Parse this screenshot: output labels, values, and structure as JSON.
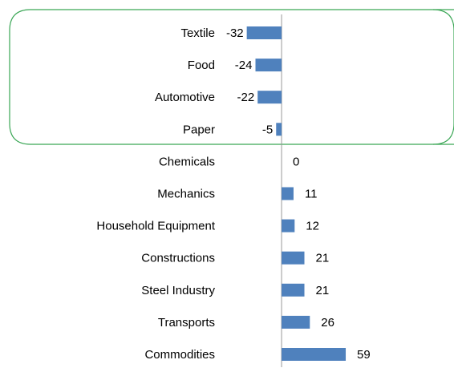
{
  "chart_data": {
    "type": "hbar",
    "categories": [
      "Textile",
      "Food",
      "Automotive",
      "Paper",
      "Chemicals",
      "Mechanics",
      "Household Equipment",
      "Constructions",
      "Steel Industry",
      "Transports",
      "Commodities"
    ],
    "values": [
      -32,
      -24,
      -22,
      -5,
      0,
      11,
      12,
      21,
      21,
      26,
      59
    ],
    "color": "#4f81bd",
    "xlim": [
      -40,
      80
    ]
  }
}
